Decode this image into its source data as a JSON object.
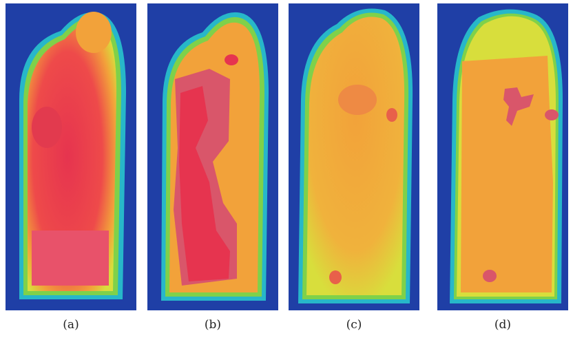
{
  "figure": {
    "panels": [
      {
        "label": "(a)",
        "style": "smooth"
      },
      {
        "label": "(b)",
        "style": "segmented"
      },
      {
        "label": "(c)",
        "style": "smooth-cool"
      },
      {
        "label": "(d)",
        "style": "segmented-cool"
      }
    ]
  },
  "colors": {
    "background_blue": "#1f3fa6",
    "edge_cyan": "#27b7c9",
    "green": "#7fd14a",
    "yellow": "#d8de3c",
    "orange": "#f2a23a",
    "red": "#e6344f",
    "pink": "#d9566a"
  }
}
